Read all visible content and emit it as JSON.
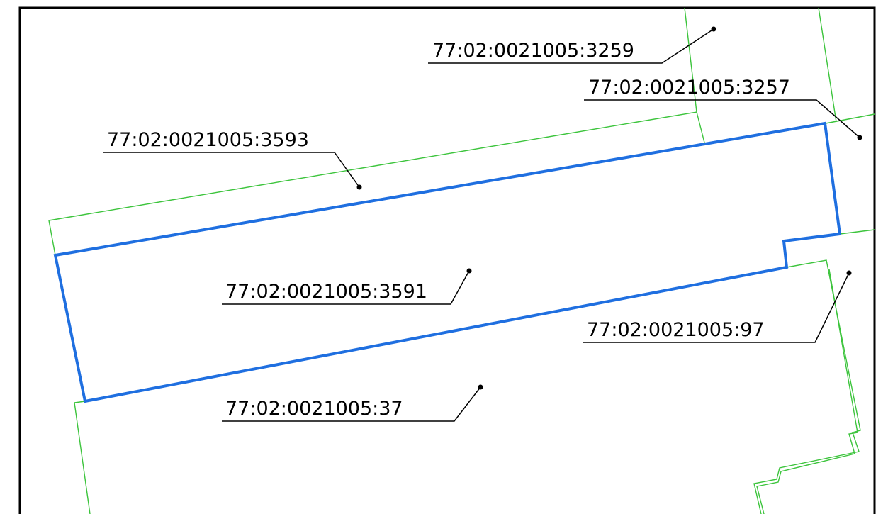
{
  "colors": {
    "background": "#ffffff",
    "frame": "#000000",
    "neighbor_boundary": "#3cc43c",
    "subject_boundary": "#1f6fe0",
    "label": "#000000"
  },
  "parcels": {
    "p3259": {
      "cadastral_number": "77:02:0021005:3259"
    },
    "p3257": {
      "cadastral_number": "77:02:0021005:3257"
    },
    "p3593": {
      "cadastral_number": "77:02:0021005:3593"
    },
    "p3591": {
      "cadastral_number": "77:02:0021005:3591"
    },
    "p97": {
      "cadastral_number": "77:02:0021005:97"
    },
    "p37": {
      "cadastral_number": "77:02:0021005:37"
    }
  }
}
